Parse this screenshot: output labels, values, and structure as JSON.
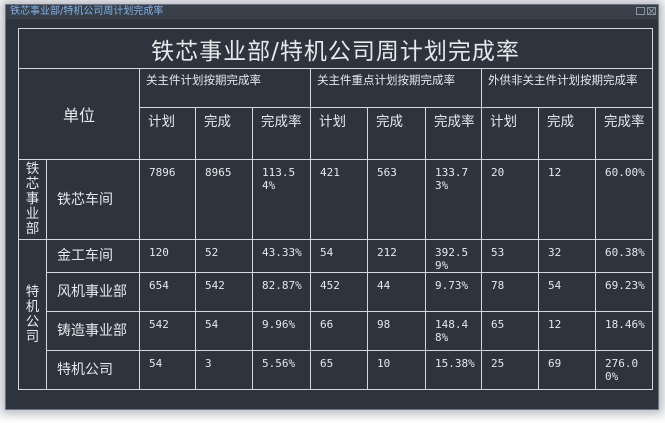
{
  "window": {
    "title": "铁芯事业部/特机公司周计划完成率"
  },
  "table": {
    "title": "铁芯事业部/特机公司周计划完成率",
    "unit_header": "单位",
    "groups": [
      "关主件计划按期完成率",
      "关主件重点计划按期完成率",
      "外供非关主件计划按期完成率"
    ],
    "sub_headers": [
      "计划",
      "完成",
      "完成率",
      "计划",
      "完成",
      "完成率",
      "计划",
      "完成",
      "完成率"
    ],
    "sections": [
      {
        "name": "铁芯事业部",
        "rows": [
          {
            "unit": "铁芯车间",
            "values": [
              "7896",
              "8965",
              "113.54%",
              "421",
              "563",
              "133.73%",
              "20",
              "12",
              "60.00%"
            ]
          }
        ]
      },
      {
        "name": "特机公司",
        "rows": [
          {
            "unit": "金工车间",
            "values": [
              "120",
              "52",
              "43.33%",
              "54",
              "212",
              "392.59%",
              "53",
              "32",
              "60.38%"
            ]
          },
          {
            "unit": "风机事业部",
            "values": [
              "654",
              "542",
              "82.87%",
              "452",
              "44",
              "9.73%",
              "78",
              "54",
              "69.23%"
            ]
          },
          {
            "unit": "铸造事业部",
            "values": [
              "542",
              "54",
              "9.96%",
              "66",
              "98",
              "148.48%",
              "65",
              "12",
              "18.46%"
            ]
          },
          {
            "unit": "特机公司",
            "values": [
              "54",
              "3",
              "5.56%",
              "65",
              "10",
              "15.38%",
              "25",
              "69",
              "276.00%"
            ]
          }
        ]
      }
    ]
  }
}
